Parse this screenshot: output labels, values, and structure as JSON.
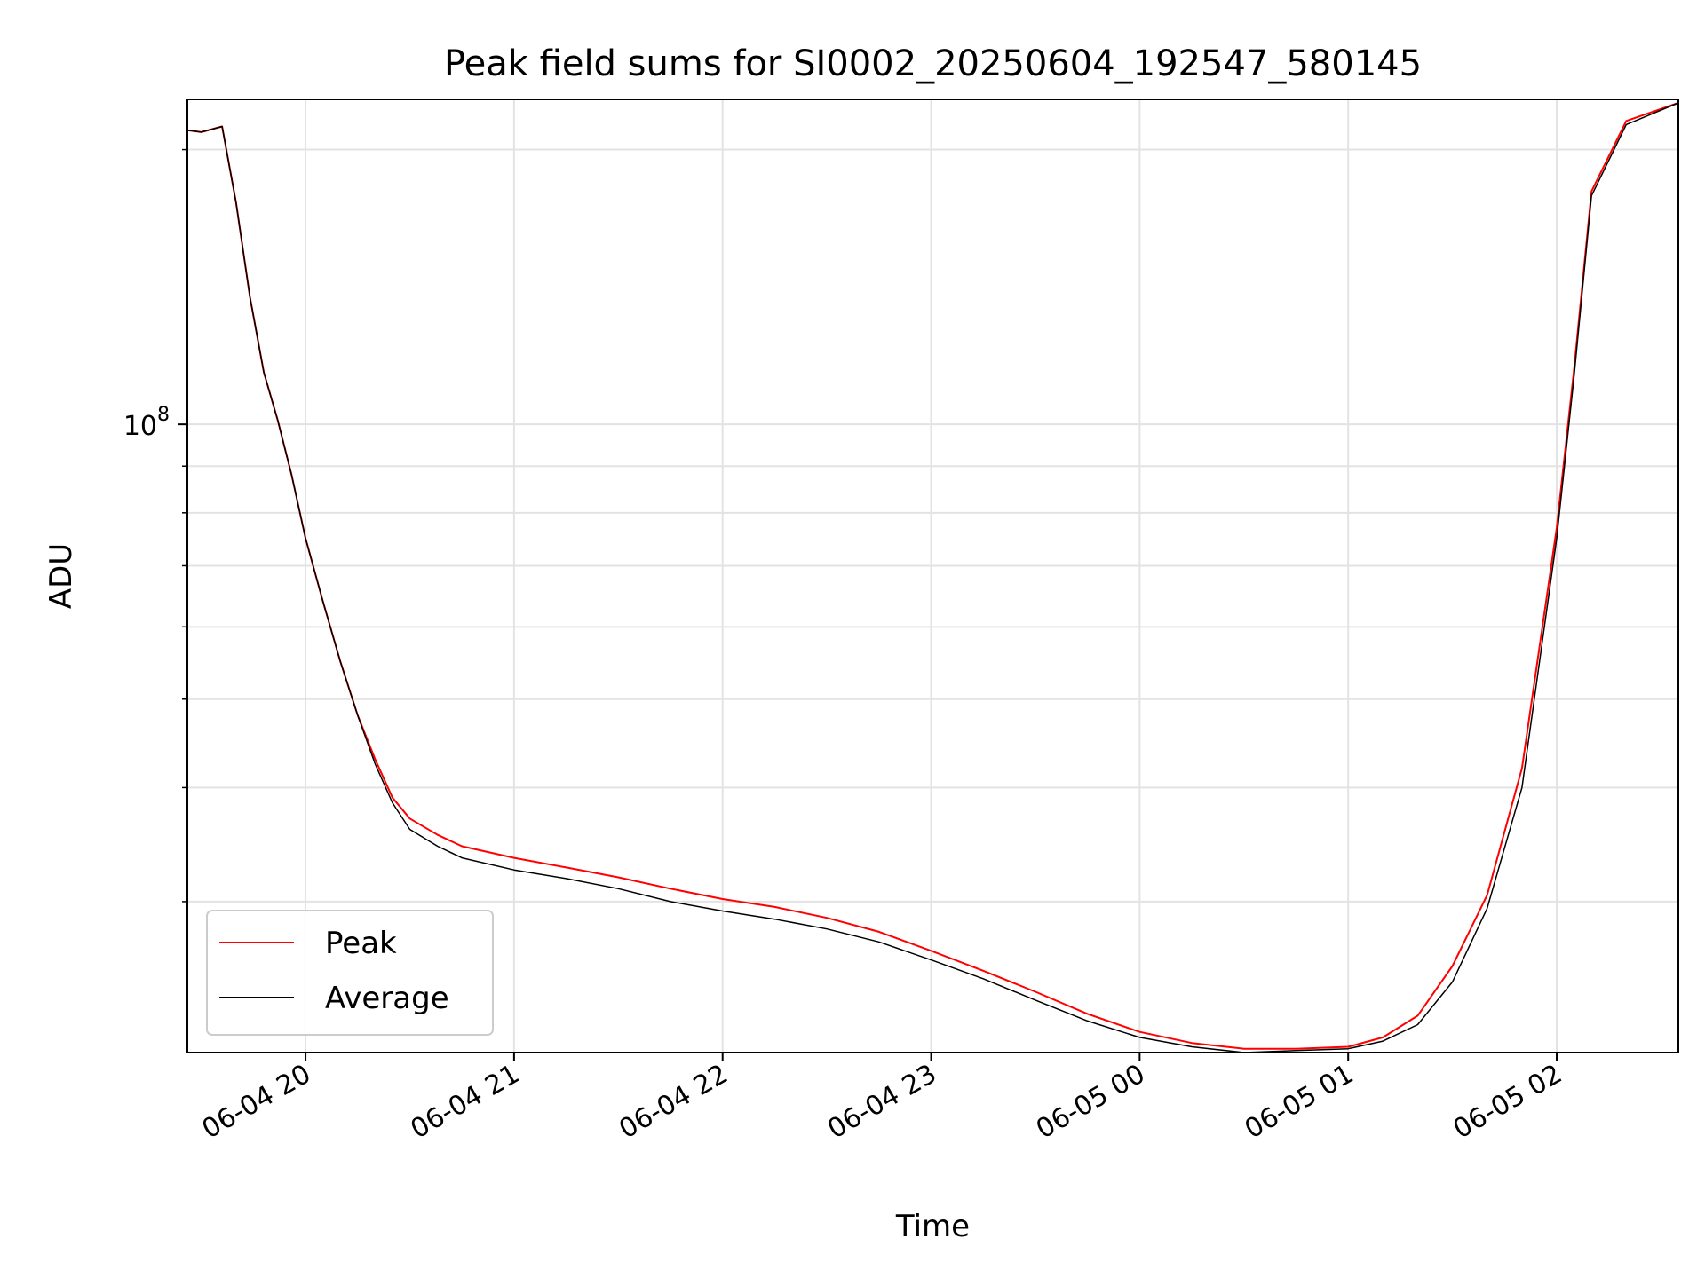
{
  "chart_data": {
    "type": "line",
    "title": "Peak field sums for SI0002_20250604_192547_580145",
    "xlabel": "Time",
    "ylabel": "ADU",
    "yscale": "log",
    "xlim": [
      "2025-06-04 19:26",
      "2025-06-05 02:35"
    ],
    "ylim": [
      20500000,
      227000000
    ],
    "x_ticks": [
      "06-04 20",
      "06-04 21",
      "06-04 22",
      "06-04 23",
      "06-05 00",
      "06-05 01",
      "06-05 02"
    ],
    "y_tick_labels": [
      {
        "base": "10",
        "exp": "8",
        "value": 100000000
      }
    ],
    "grid": true,
    "legend_position": "lower left",
    "series": [
      {
        "name": "Peak",
        "color": "#ff0000",
        "x": [
          "2025-06-04 19:26",
          "2025-06-04 19:30",
          "2025-06-04 19:36",
          "2025-06-04 19:40",
          "2025-06-04 19:44",
          "2025-06-04 19:48",
          "2025-06-04 19:52",
          "2025-06-04 19:56",
          "2025-06-04 20:00",
          "2025-06-04 20:05",
          "2025-06-04 20:10",
          "2025-06-04 20:15",
          "2025-06-04 20:20",
          "2025-06-04 20:25",
          "2025-06-04 20:30",
          "2025-06-04 20:38",
          "2025-06-04 20:45",
          "2025-06-04 21:00",
          "2025-06-04 21:15",
          "2025-06-04 21:30",
          "2025-06-04 21:45",
          "2025-06-04 22:00",
          "2025-06-04 22:15",
          "2025-06-04 22:30",
          "2025-06-04 22:45",
          "2025-06-04 23:00",
          "2025-06-04 23:15",
          "2025-06-04 23:30",
          "2025-06-04 23:45",
          "2025-06-05 00:00",
          "2025-06-05 00:15",
          "2025-06-05 00:30",
          "2025-06-05 00:45",
          "2025-06-05 01:00",
          "2025-06-05 01:10",
          "2025-06-05 01:20",
          "2025-06-05 01:30",
          "2025-06-05 01:40",
          "2025-06-05 01:50",
          "2025-06-05 02:00",
          "2025-06-05 02:05",
          "2025-06-05 02:10",
          "2025-06-05 02:20",
          "2025-06-05 02:35"
        ],
        "values": [
          210000000,
          209000000,
          212000000,
          175000000,
          138000000,
          114000000,
          101000000,
          88000000,
          75000000,
          64000000,
          55000000,
          48000000,
          43000000,
          39000000,
          37000000,
          35500000,
          34500000,
          33500000,
          32700000,
          31900000,
          31000000,
          30200000,
          29600000,
          28800000,
          27800000,
          26500000,
          25200000,
          23900000,
          22600000,
          21600000,
          21000000,
          20700000,
          20700000,
          20800000,
          21300000,
          22500000,
          25500000,
          30500000,
          42000000,
          77000000,
          115000000,
          180000000,
          215000000,
          225000000
        ]
      },
      {
        "name": "Average",
        "color": "#000000",
        "x": [
          "2025-06-04 19:26",
          "2025-06-04 19:30",
          "2025-06-04 19:36",
          "2025-06-04 19:40",
          "2025-06-04 19:44",
          "2025-06-04 19:48",
          "2025-06-04 19:52",
          "2025-06-04 19:56",
          "2025-06-04 20:00",
          "2025-06-04 20:05",
          "2025-06-04 20:10",
          "2025-06-04 20:15",
          "2025-06-04 20:20",
          "2025-06-04 20:25",
          "2025-06-04 20:30",
          "2025-06-04 20:38",
          "2025-06-04 20:45",
          "2025-06-04 21:00",
          "2025-06-04 21:15",
          "2025-06-04 21:30",
          "2025-06-04 21:45",
          "2025-06-04 22:00",
          "2025-06-04 22:15",
          "2025-06-04 22:30",
          "2025-06-04 22:45",
          "2025-06-04 23:00",
          "2025-06-04 23:15",
          "2025-06-04 23:30",
          "2025-06-04 23:45",
          "2025-06-05 00:00",
          "2025-06-05 00:15",
          "2025-06-05 00:30",
          "2025-06-05 00:45",
          "2025-06-05 01:00",
          "2025-06-05 01:10",
          "2025-06-05 01:20",
          "2025-06-05 01:30",
          "2025-06-05 01:40",
          "2025-06-05 01:50",
          "2025-06-05 02:00",
          "2025-06-05 02:05",
          "2025-06-05 02:10",
          "2025-06-05 02:20",
          "2025-06-05 02:35"
        ],
        "values": [
          210000000,
          209000000,
          212000000,
          175000000,
          138000000,
          114000000,
          101000000,
          88000000,
          75000000,
          64000000,
          55000000,
          48000000,
          42500000,
          38500000,
          36000000,
          34500000,
          33500000,
          32500000,
          31800000,
          31000000,
          30000000,
          29300000,
          28700000,
          28000000,
          27100000,
          25900000,
          24700000,
          23400000,
          22200000,
          21300000,
          20800000,
          20500000,
          20600000,
          20700000,
          21100000,
          22000000,
          24500000,
          29500000,
          40000000,
          75000000,
          113000000,
          178000000,
          213000000,
          225000000
        ]
      }
    ]
  }
}
